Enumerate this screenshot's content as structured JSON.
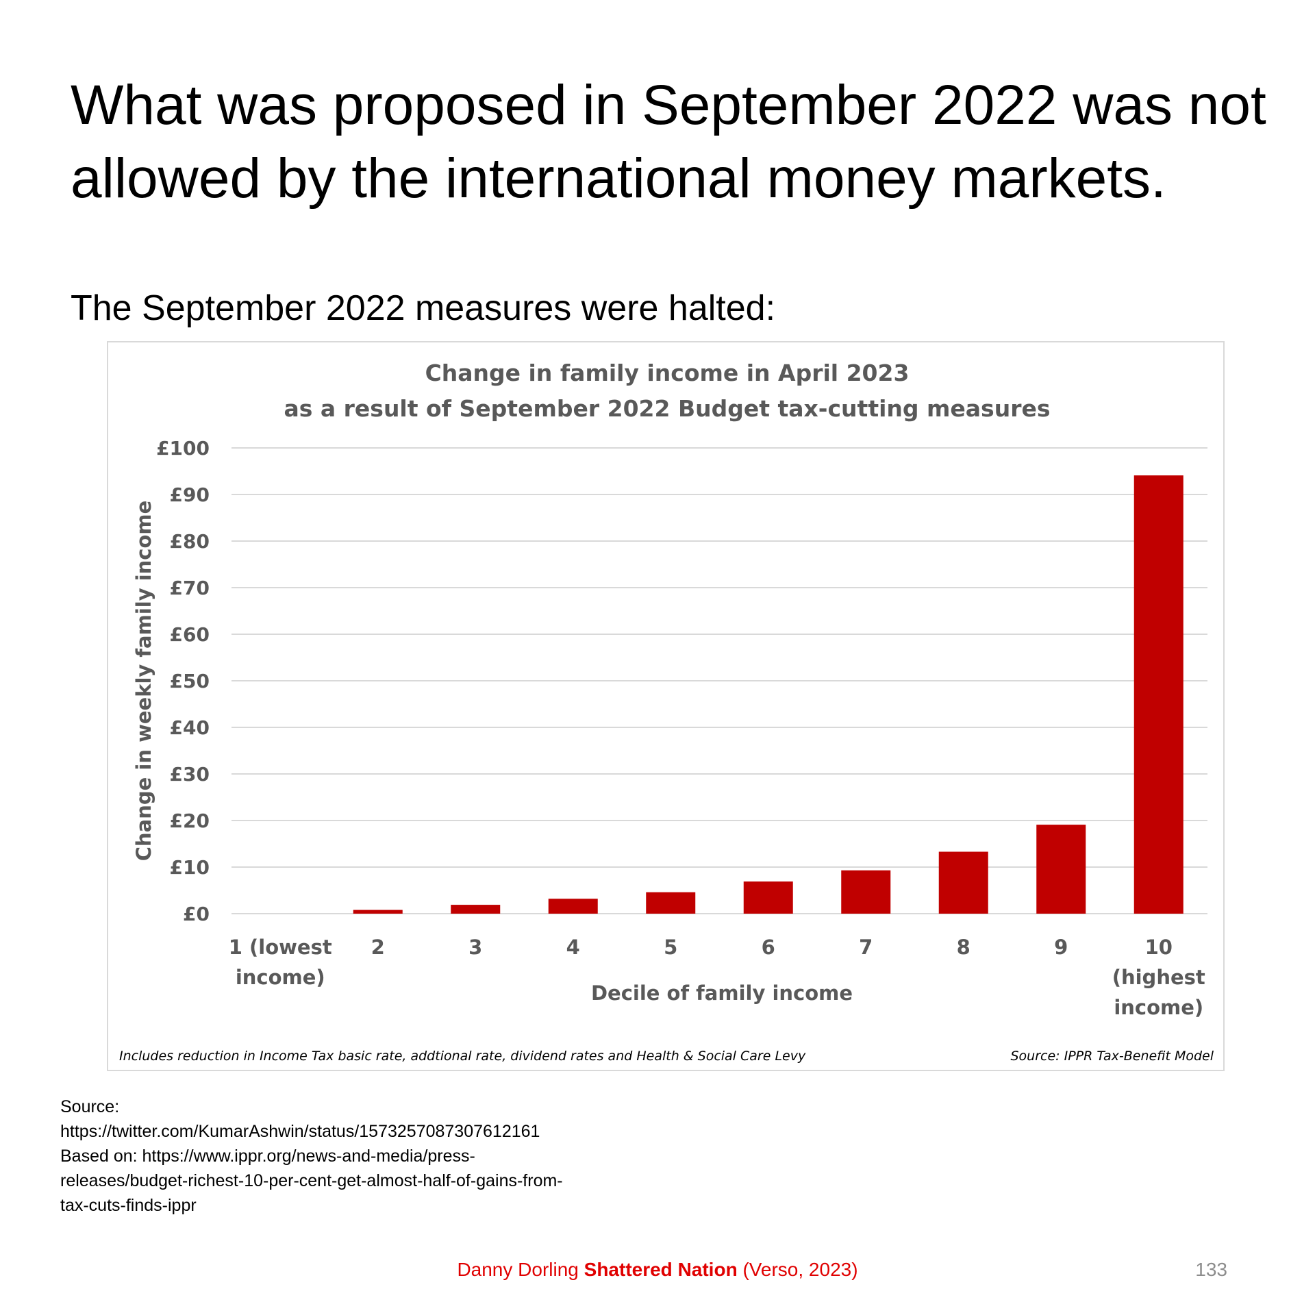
{
  "slide": {
    "title": "What was proposed in September 2022 was not allowed by the international money markets.",
    "subtitle": "The September 2022 measures were halted:"
  },
  "chart_data": {
    "type": "bar",
    "title_lines": [
      "Change in family income in April 2023",
      "as a result of September 2022 Budget tax-cutting measures"
    ],
    "categories": [
      "1 (lowest income)",
      "2",
      "3",
      "4",
      "5",
      "6",
      "7",
      "8",
      "9",
      "10 (highest income)"
    ],
    "category_label_lines": [
      [
        "1 (lowest",
        "income)"
      ],
      [
        "2"
      ],
      [
        "3"
      ],
      [
        "4"
      ],
      [
        "5"
      ],
      [
        "6"
      ],
      [
        "7"
      ],
      [
        "8"
      ],
      [
        "9"
      ],
      [
        "10",
        "(highest",
        "income)"
      ]
    ],
    "values": [
      0,
      0.8,
      1.9,
      3.2,
      4.6,
      6.9,
      9.3,
      13.3,
      19.1,
      94.1
    ],
    "ylim": [
      0,
      100
    ],
    "yticks": [
      0,
      10,
      20,
      30,
      40,
      50,
      60,
      70,
      80,
      90,
      100
    ],
    "ytick_labels": [
      "£0",
      "£10",
      "£20",
      "£30",
      "£40",
      "£50",
      "£60",
      "£70",
      "£80",
      "£90",
      "£100"
    ],
    "xlabel": "Decile of family income",
    "ylabel": "Change in weekly family income",
    "grid": true,
    "bar_color": "#c00000",
    "note_left": "Includes reduction in Income Tax basic rate, addtional rate, dividend rates and Health & Social Care Levy",
    "note_right": "Source: IPPR Tax-Benefit Model"
  },
  "source": {
    "label": "Source:",
    "lines": [
      "https://twitter.com/KumarAshwin/status/1573257087307612161",
      "Based on: https://www.ippr.org/news-and-media/press-",
      "releases/budget-richest-10-per-cent-get-almost-half-of-gains-from-",
      "tax-cuts-finds-ippr"
    ]
  },
  "footer": {
    "author": "Danny Dorling",
    "book": "Shattered Nation",
    "publisher": "(Verso, 2023)",
    "page_number": "133"
  },
  "colors": {
    "accent_red": "#e00000",
    "chart_text": "#595959",
    "gridline": "#d9d9d9"
  }
}
